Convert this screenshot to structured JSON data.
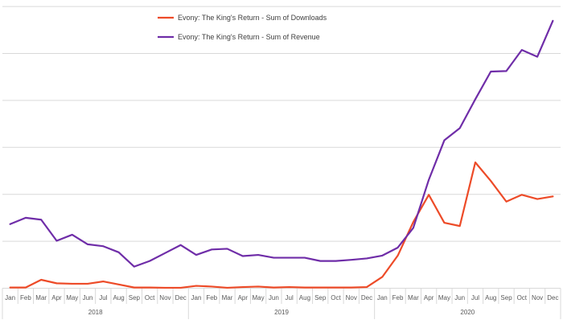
{
  "chart_data": {
    "type": "line",
    "title": "",
    "xlabel": "",
    "ylabel": "",
    "grid": true,
    "ylim": [
      0,
      100
    ],
    "legend_position": "top-left",
    "categories": [
      "Jan",
      "Feb",
      "Mar",
      "Apr",
      "May",
      "Jun",
      "Jul",
      "Aug",
      "Sep",
      "Oct",
      "Nov",
      "Dec",
      "Jan",
      "Feb",
      "Mar",
      "Apr",
      "May",
      "Jun",
      "Jul",
      "Aug",
      "Sep",
      "Oct",
      "Nov",
      "Dec",
      "Jan",
      "Feb",
      "Mar",
      "Apr",
      "May",
      "Jun",
      "Jul",
      "Aug",
      "Sep",
      "Oct",
      "Nov",
      "Dec"
    ],
    "groups": [
      {
        "label": "2018",
        "start": 0,
        "end": 11
      },
      {
        "label": "2019",
        "start": 12,
        "end": 23
      },
      {
        "label": "2020",
        "start": 24,
        "end": 35
      }
    ],
    "series": [
      {
        "name": "Evony: The King's Return - Sum of Downloads",
        "color": "#ED4B28",
        "values": [
          0.3,
          0.3,
          3.6,
          2.1,
          1.9,
          1.9,
          2.9,
          1.6,
          0.3,
          0.3,
          0.2,
          0.2,
          1.0,
          0.7,
          0.2,
          0.5,
          0.7,
          0.3,
          0.5,
          0.3,
          0.3,
          0.3,
          0.3,
          0.5,
          4.8,
          13.9,
          28.2,
          39.8,
          27.9,
          26.5,
          53.6,
          45.7,
          36.9,
          39.8,
          38.0,
          39.1
        ]
      },
      {
        "name": "Evony: The King's Return - Sum of Revenue",
        "color": "#6F2DA8",
        "values": [
          27.3,
          30.0,
          29.2,
          20.2,
          22.8,
          18.7,
          17.9,
          15.3,
          9.2,
          11.6,
          15.0,
          18.4,
          14.2,
          16.5,
          16.8,
          13.7,
          14.2,
          13.0,
          13.0,
          13.0,
          11.6,
          11.6,
          12.1,
          12.7,
          13.9,
          17.3,
          25.7,
          46.2,
          63.0,
          68.2,
          80.5,
          92.3,
          92.5,
          101.5,
          98.6,
          113.9
        ]
      }
    ]
  }
}
